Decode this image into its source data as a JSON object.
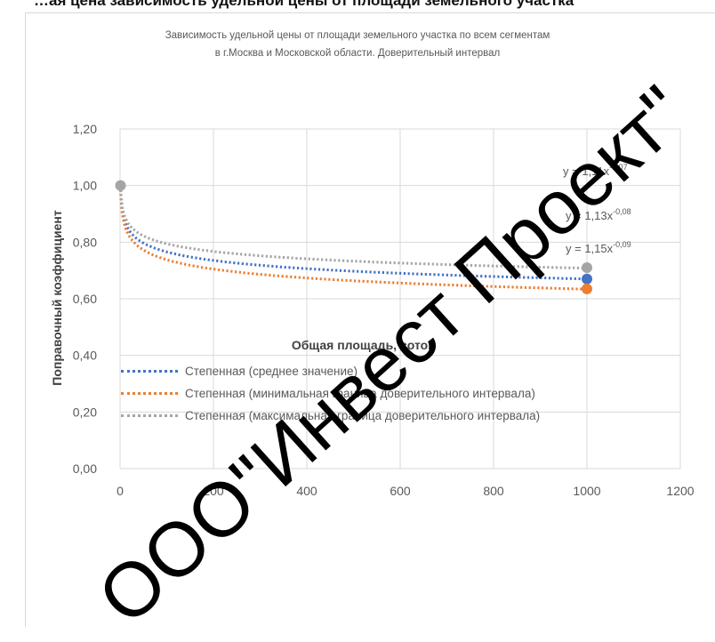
{
  "chart_data": {
    "type": "scatter",
    "title": [
      "Зависимость удельной цены от площади земельного участка по всем сегментам",
      "в г.Москва и Московской области. Доверительный интервал"
    ],
    "xlabel": "Общая площадь, соток",
    "ylabel": "Поправочный коэффициент",
    "xlim": [
      0,
      1200
    ],
    "ylim": [
      0,
      1.2
    ],
    "x_ticks": [
      "0",
      "200",
      "400",
      "600",
      "800",
      "1000",
      "1200"
    ],
    "y_ticks": [
      "0,00",
      "0,20",
      "0,40",
      "0,60",
      "0,80",
      "1,00",
      "1,20"
    ],
    "grid": true,
    "legend_position": "bottom",
    "points": [
      {
        "x": 1,
        "y": 1.0
      },
      {
        "x": 1000,
        "y": 0.67
      },
      {
        "x": 1000,
        "y": 0.635
      },
      {
        "x": 1000,
        "y": 0.71
      }
    ],
    "series": [
      {
        "name": "Степенная (среднее значение)",
        "color": "#4472c4",
        "a": 1,
        "b": -0.058
      },
      {
        "name": "Степенная (минимальная граница доверительного интервала)",
        "color": "#ed7d31",
        "a": 1,
        "b": -0.066
      },
      {
        "name": "Степенная (максимальная граница доверительного интервала)",
        "color": "#a5a5a5",
        "a": 1,
        "b": -0.05
      }
    ],
    "annotations": [
      {
        "base": "y = 1,11x",
        "sup": "-0,07"
      },
      {
        "base": "y = 1,13x",
        "sup": "-0,08"
      },
      {
        "base": "y = 1,15x",
        "sup": "-0,09"
      }
    ]
  },
  "top_text": "…ая цена зависимость удельной цены от площади земельного участка",
  "watermark": "ООО\"Инвест Проект\""
}
